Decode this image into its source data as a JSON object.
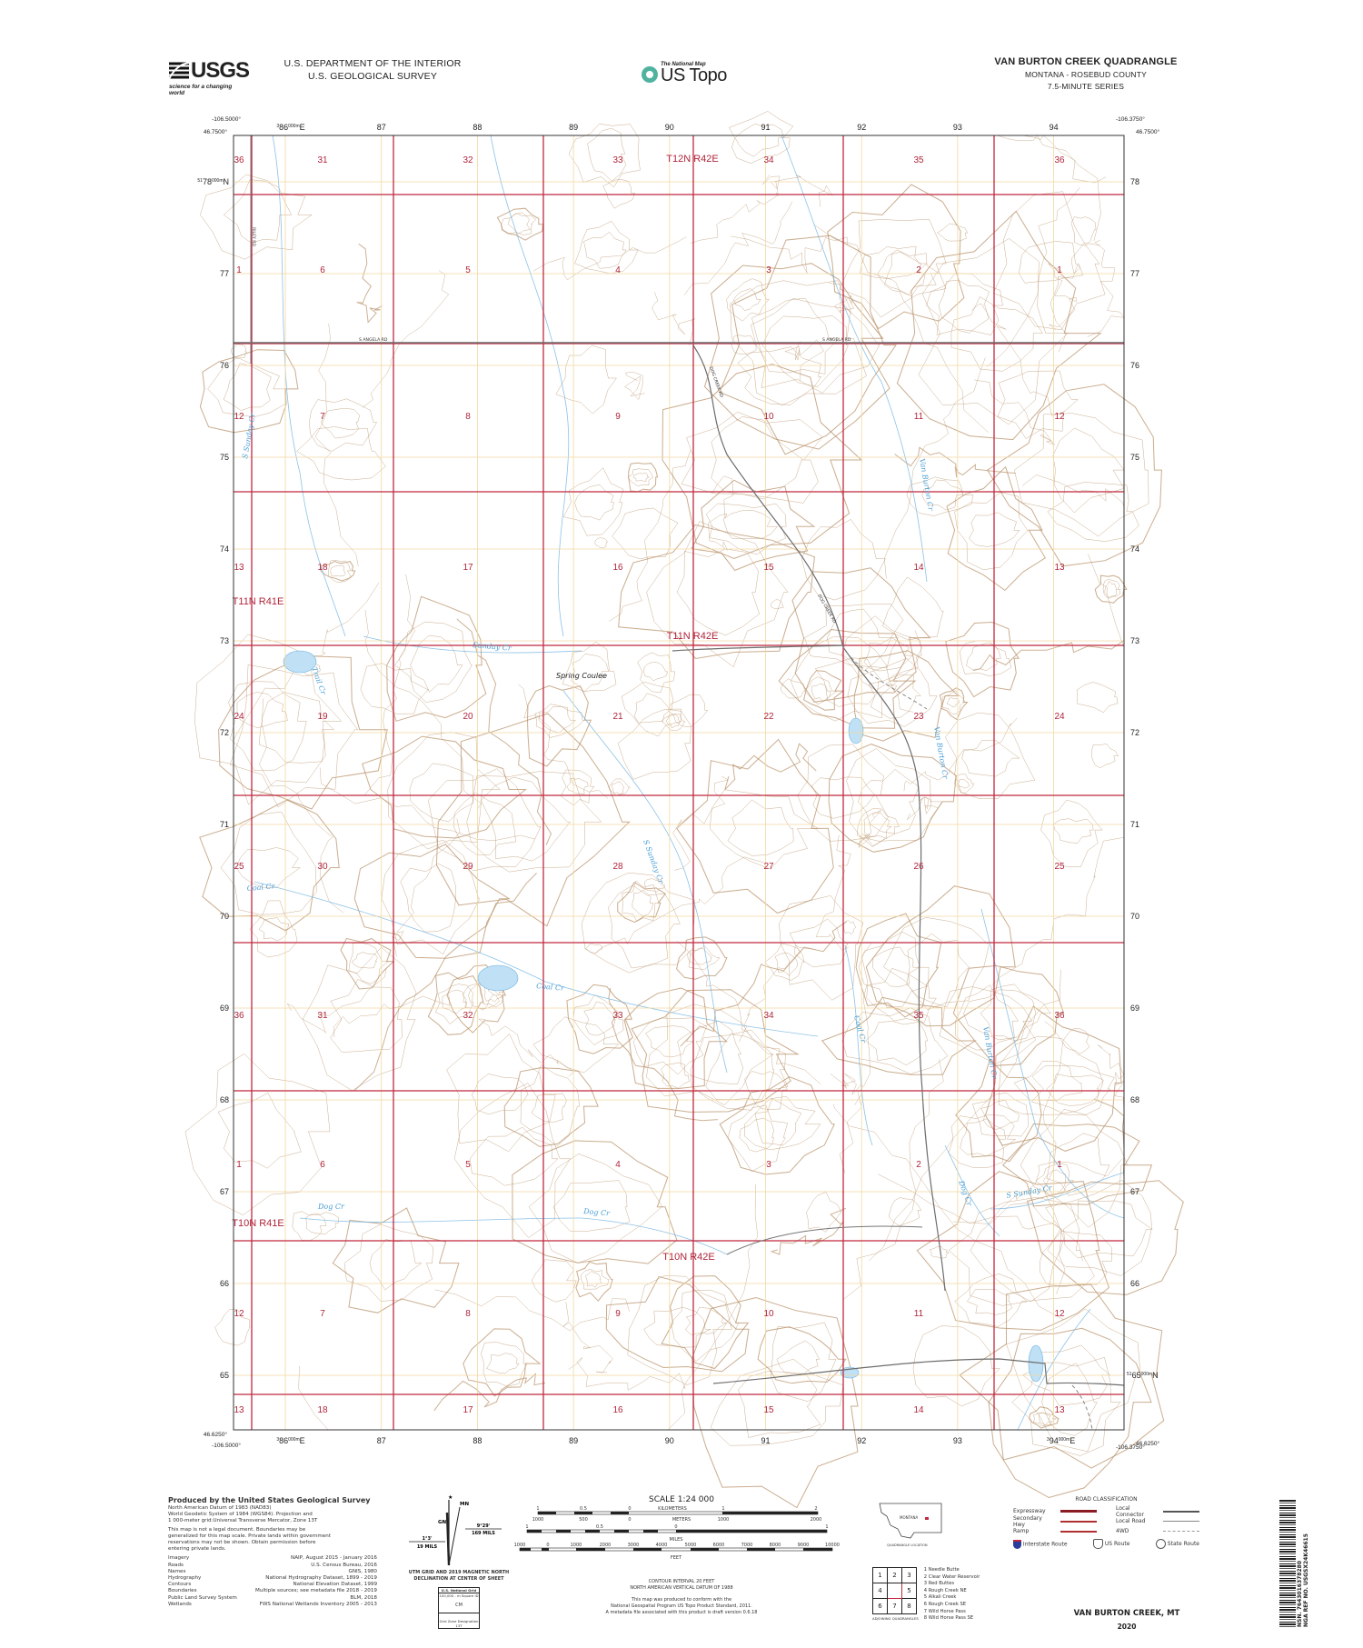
{
  "header": {
    "agency_logo_text": "USGS",
    "agency_tagline": "science for a changing world",
    "department": "U.S. DEPARTMENT OF THE INTERIOR",
    "survey": "U.S. GEOLOGICAL SURVEY",
    "product_small": "The National Map",
    "product_name": "US Topo",
    "quad_title": "VAN BURTON CREEK QUADRANGLE",
    "state_county": "MONTANA - ROSEBUD COUNTY",
    "series": "7.5-MINUTE SERIES"
  },
  "corners": {
    "tl_lon": "-106.5000°",
    "tl_lat": "46.7500°",
    "tr_lon": "-106.3750°",
    "tr_lat": "46.7500°",
    "bl_lon": "-106.5000°",
    "bl_lat": "46.6250°",
    "br_lon": "-106.3750°",
    "br_lat": "46.6250°"
  },
  "utm": {
    "easting_first": "86",
    "easting_first_sup": "000m",
    "easting_first_pre": "3",
    "easting_first_suffix": "E",
    "eastings": [
      "87",
      "88",
      "89",
      "90",
      "91",
      "92",
      "93"
    ],
    "easting_last": "94",
    "northing_top_pre": "51",
    "northing_top": "78",
    "northings": [
      "77",
      "76",
      "75",
      "74",
      "73",
      "72",
      "71",
      "70",
      "69",
      "68",
      "67",
      "66"
    ],
    "northing_bottom": "65",
    "northing_sup": "000m",
    "northing_suffix": "N",
    "right_labels": [
      "78",
      "77",
      "76",
      "75",
      "74",
      "73",
      "72",
      "71",
      "70",
      "69",
      "68",
      "67",
      "66"
    ],
    "left_labels": [
      "77",
      "76",
      "75",
      "74",
      "73",
      "72",
      "71",
      "70",
      "69",
      "68",
      "67",
      "66",
      "65"
    ]
  },
  "sections": {
    "rows": [
      [
        "36",
        "31",
        "32",
        "33",
        "34",
        "35",
        "36"
      ],
      [
        "1",
        "6",
        "5",
        "4",
        "3",
        "2",
        "1"
      ],
      [
        "12",
        "7",
        "8",
        "9",
        "10",
        "11",
        "12"
      ],
      [
        "13",
        "18",
        "17",
        "16",
        "15",
        "14",
        "13"
      ],
      [
        "24",
        "19",
        "20",
        "21",
        "22",
        "23",
        "24"
      ],
      [
        "25",
        "30",
        "29",
        "28",
        "27",
        "26",
        "25"
      ],
      [
        "36",
        "31",
        "32",
        "33",
        "34",
        "35",
        "36"
      ],
      [
        "1",
        "6",
        "5",
        "4",
        "3",
        "2",
        "1"
      ],
      [
        "12",
        "7",
        "8",
        "9",
        "10",
        "11",
        "12"
      ],
      [
        "13",
        "18",
        "17",
        "16",
        "15",
        "14",
        "13"
      ]
    ]
  },
  "townships": [
    "T12N R42E",
    "T11N R41E",
    "T11N R42E",
    "T10N R41E",
    "T10N R42E"
  ],
  "features": {
    "spring_coulee": "Spring Coulee",
    "streams": [
      "S Sunday Cr",
      "Sunday Cr",
      "Trail Cr",
      "Van Burton Cr",
      "Van Burton Cr",
      "S Sunday Cr",
      "Coal Cr",
      "Coal Cr",
      "Coal Cr",
      "Van Burton Cr",
      "Dog Cr",
      "Dog Cr",
      "Dog Cr",
      "S Sunday Cr"
    ],
    "roads": [
      "S ANGELA RD",
      "S ANGELA RD",
      "RILEY RD",
      "DOG CREEK RD",
      "DOG CREEK RD"
    ]
  },
  "footer": {
    "producer": "Produced by the United States Geological Survey",
    "datum_lines": [
      "North American Datum of 1983 (NAD83)",
      "World Geodetic System of 1984 (WGS84).  Projection and",
      "1 000-meter grid:Universal Transverse Mercator, Zone 13T"
    ],
    "disclaimer_lines": [
      "This map is not a legal document. Boundaries may be",
      "generalized for this map scale. Private lands within government",
      "reservations may not be shown. Obtain permission before",
      "entering private lands."
    ],
    "credits": [
      {
        "k": "Imagery",
        "v": "NAIP, August 2015 - January 2016"
      },
      {
        "k": "Roads",
        "v": "U.S. Census Bureau, 2016"
      },
      {
        "k": "Names",
        "v": "GNIS, 1980"
      },
      {
        "k": "Hydrography",
        "v": "National Hydrography Dataset, 1899 - 2019"
      },
      {
        "k": "Contours",
        "v": "National Elevation Dataset, 1999"
      },
      {
        "k": "Boundaries",
        "v": "Multiple sources; see metadata file 2018 - 2019"
      },
      {
        "k": "Public Land Survey System",
        "v": "BLM, 2018"
      },
      {
        "k": "Wetlands",
        "v": "FWS National Wetlands Inventory 2005 - 2013"
      }
    ],
    "declination": {
      "mn": "MN",
      "gn": "GN",
      "star": "★",
      "grid_angle": "1°3'",
      "grid_mils": "19 MILS",
      "mag_angle": "9°29'",
      "mag_mils": "169 MILS",
      "caption1": "UTM GRID AND 2019 MAGNETIC NORTH",
      "caption2": "DECLINATION AT CENTER OF SHEET"
    },
    "grid_box": {
      "title": "U.S. National Grid",
      "subtitle": "100,000 - m Square ID",
      "square_id": "CM",
      "zone_label": "Grid Zone Designation",
      "zone": "13T"
    },
    "scale": {
      "title": "SCALE 1:24 000",
      "km_labels": [
        "1",
        "0.5",
        "0",
        "1",
        "2"
      ],
      "km_unit": "KILOMETERS",
      "m_labels": [
        "1000",
        "500",
        "0",
        "1000",
        "2000"
      ],
      "m_unit": "METERS",
      "mi_labels": [
        "1",
        "0.5",
        "0",
        "1"
      ],
      "mi_unit": "MILES",
      "ft_labels": [
        "1000",
        "0",
        "1000",
        "2000",
        "3000",
        "4000",
        "5000",
        "6000",
        "7000",
        "8000",
        "9000",
        "10000"
      ],
      "ft_unit": "FEET"
    },
    "contour_note": [
      "CONTOUR INTERVAL 20 FEET",
      "NORTH AMERICAN VERTICAL DATUM OF 1988"
    ],
    "standard_note": [
      "This map was produced to conform with the",
      "National Geospatial Program US Topo Product Standard, 2011.",
      "A metadata file associated with this product is draft version 0.6.18"
    ],
    "location": {
      "state": "MONTANA",
      "caption": "QUADRANGLE LOCATION"
    },
    "adjoining": {
      "grid": [
        "1",
        "2",
        "3",
        "4",
        "",
        "5",
        "6",
        "7",
        "8"
      ],
      "names": [
        "1 Needle Butte",
        "2 Clear Water Reservoir",
        "3 Red Buttes",
        "4 Rough Creek NE",
        "5 Alkali Creek",
        "6 Rough Creek SE",
        "7 Wild Horse Pass",
        "8 Wild Horse Pass SE"
      ],
      "caption": "ADJOINING QUADRANGLES"
    },
    "road_classification": {
      "title": "ROAD CLASSIFICATION",
      "left": [
        "Expressway",
        "Secondary Hwy",
        "Ramp"
      ],
      "right": [
        "Local Connector",
        "Local Road",
        "4WD"
      ],
      "routes": [
        "Interstate Route",
        "US Route",
        "State Route"
      ]
    },
    "sheet_name": "VAN BURTON CREEK,  MT",
    "year": "2020",
    "barcode": {
      "nsn": "NSN. 7643016378280",
      "nga": "NGA REF NO. USGSX24K46615"
    }
  },
  "colors": {
    "section_line": "#c0283f",
    "utm_grid": "#f2d9a0",
    "contour": "#b8916a",
    "water": "#6fb3e0",
    "road": "#6d6d6d",
    "section_text": "#b0243a"
  }
}
